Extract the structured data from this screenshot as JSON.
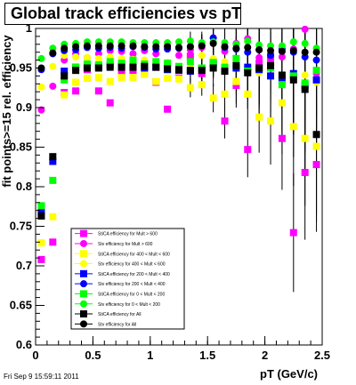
{
  "header": {
    "title": "Global track efficiencies vs pT"
  },
  "footer": {
    "timestamp": "Fri Sep  9 15:59:11 2011"
  },
  "chart_data": {
    "type": "scatter",
    "title": "Global track efficiencies vs pT",
    "xlabel": "pT (GeV/c)",
    "ylabel": "fit points>=15 rel. efficiency",
    "xlim": [
      0,
      2.5
    ],
    "ylim": [
      0.6,
      1.0
    ],
    "xticks": [
      "0",
      "0.5",
      "1",
      "1.5",
      "2",
      "2.5"
    ],
    "yticks": [
      "0.6",
      "0.65",
      "0.7",
      "0.75",
      "0.8",
      "0.85",
      "0.9",
      "0.95",
      "1"
    ],
    "grid": false,
    "legend_position": "lower-left",
    "x": [
      0.05,
      0.15,
      0.25,
      0.35,
      0.45,
      0.55,
      0.65,
      0.75,
      0.85,
      0.95,
      1.05,
      1.15,
      1.25,
      1.35,
      1.45,
      1.55,
      1.65,
      1.75,
      1.85,
      1.95,
      2.05,
      2.15,
      2.25,
      2.35,
      2.45
    ],
    "series": [
      {
        "name": "StiCA efficiency  for Mult > 600",
        "marker": "square",
        "color": "#ff00ff",
        "values": [
          0.708,
          0.73,
          0.919,
          0.921,
          0.948,
          0.921,
          0.906,
          0.945,
          0.947,
          0.945,
          0.932,
          0.898,
          0.937,
          0.965,
          0.943,
          0.958,
          0.883,
          0.928,
          0.847,
          0.956,
          0.965,
          0.861,
          0.742,
          0.818,
          0.828
        ]
      },
      {
        "name": "Stv efficiency  for Mult > 600",
        "marker": "circle",
        "color": "#ff00ff",
        "values": [
          0.897,
          0.927,
          0.96,
          0.968,
          0.963,
          0.968,
          0.972,
          0.971,
          0.968,
          0.972,
          0.968,
          0.978,
          0.966,
          0.973,
          0.976,
          0.988,
          0.971,
          0.981,
          0.987,
          0.963,
          0.959,
          0.964,
          0.974,
          0.999,
          0.943
        ]
      },
      {
        "name": "StiCA efficiency  for 400 < Mult < 600",
        "marker": "square",
        "color": "#ffff00",
        "values": [
          0.729,
          0.762,
          0.916,
          0.932,
          0.937,
          0.938,
          0.933,
          0.938,
          0.938,
          0.942,
          0.933,
          0.937,
          0.936,
          0.925,
          0.929,
          0.912,
          0.917,
          0.933,
          0.917,
          0.888,
          0.883,
          0.906,
          0.876,
          0.861,
          0.851
        ]
      },
      {
        "name": "Stv efficiency  for 400 < Mult < 600",
        "marker": "circle",
        "color": "#ffff00",
        "values": [
          0.926,
          0.952,
          0.966,
          0.964,
          0.963,
          0.962,
          0.964,
          0.962,
          0.961,
          0.96,
          0.958,
          0.957,
          0.952,
          0.955,
          0.966,
          0.962,
          0.958,
          0.954,
          0.948,
          0.944,
          0.94,
          0.937,
          0.942,
          0.941,
          0.932
        ]
      },
      {
        "name": "StiCA efficiency  for 200 < Mult < 400",
        "marker": "square",
        "color": "#0000ff",
        "values": [
          0.768,
          0.832,
          0.946,
          0.951,
          0.953,
          0.952,
          0.954,
          0.953,
          0.954,
          0.95,
          0.951,
          0.948,
          0.947,
          0.946,
          0.95,
          0.955,
          0.946,
          0.95,
          0.951,
          0.948,
          0.94,
          0.935,
          0.943,
          0.928,
          0.935
        ]
      },
      {
        "name": "Stv efficiency  for 200 < Mult < 400",
        "marker": "circle",
        "color": "#0000ff",
        "values": [
          0.948,
          0.968,
          0.972,
          0.973,
          0.976,
          0.975,
          0.976,
          0.975,
          0.977,
          0.976,
          0.974,
          0.974,
          0.975,
          0.977,
          0.979,
          0.988,
          0.976,
          0.974,
          0.97,
          0.973,
          0.966,
          0.974,
          0.97,
          0.964,
          0.96
        ]
      },
      {
        "name": "StiCA efficiency  for 0 < Mult < 200",
        "marker": "square",
        "color": "#00ff00",
        "values": [
          0.776,
          0.808,
          0.935,
          0.951,
          0.955,
          0.954,
          0.958,
          0.956,
          0.96,
          0.955,
          0.958,
          0.956,
          0.952,
          0.958,
          0.95,
          0.957,
          0.951,
          0.962,
          0.946,
          0.95,
          0.95,
          0.929,
          0.94,
          0.931,
          0.947
        ]
      },
      {
        "name": "Stv efficiency  for 0 < Mult < 200",
        "marker": "circle",
        "color": "#00ff00",
        "values": [
          0.962,
          0.975,
          0.98,
          0.981,
          0.983,
          0.983,
          0.983,
          0.983,
          0.982,
          0.982,
          0.982,
          0.982,
          0.983,
          0.984,
          0.982,
          0.983,
          0.982,
          0.98,
          0.984,
          0.979,
          0.978,
          0.978,
          0.983,
          0.981,
          0.975
        ]
      },
      {
        "name": "StiCA efficiency  for All",
        "marker": "square",
        "color": "#000000",
        "values": [
          0.763,
          0.838,
          0.94,
          0.947,
          0.95,
          0.95,
          0.951,
          0.951,
          0.951,
          0.952,
          0.951,
          0.949,
          0.948,
          0.947,
          0.947,
          0.95,
          0.946,
          0.953,
          0.944,
          0.95,
          0.953,
          0.941,
          0.935,
          0.923,
          0.866
        ]
      },
      {
        "name": "Stv efficiency  for All",
        "marker": "circle",
        "color": "#000000",
        "values": [
          0.95,
          0.969,
          0.975,
          0.977,
          0.978,
          0.978,
          0.978,
          0.978,
          0.978,
          0.977,
          0.977,
          0.977,
          0.976,
          0.977,
          0.978,
          0.981,
          0.977,
          0.975,
          0.976,
          0.973,
          0.972,
          0.971,
          0.972,
          0.97,
          0.97
        ]
      }
    ],
    "error_bars_pt_at_least": 1.35,
    "error_bar_scale": [
      0.012,
      0.014,
      0.018,
      0.022,
      0.028,
      0.035,
      0.045,
      0.055,
      0.065,
      0.075,
      0.085
    ]
  }
}
